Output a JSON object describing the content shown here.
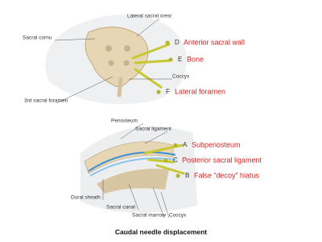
{
  "top_figure": {
    "anatomy_labels": [
      "Lateral sacral crest",
      "Sacral cornu",
      "Coccyx",
      "3rd sacral foramen"
    ],
    "needles": [
      {
        "letter": "D",
        "label": "Anterior sacral wall"
      },
      {
        "letter": "E",
        "label": "Bone"
      },
      {
        "letter": "F",
        "label": "Lateral foramen"
      }
    ]
  },
  "bottom_figure": {
    "anatomy_labels": [
      "Periosteum",
      "Sacral ligament",
      "Dural sheath",
      "Sacral canal",
      "Sacral marrow",
      "Coccyx"
    ],
    "needles": [
      {
        "letter": "A",
        "label": "Subperiosteum"
      },
      {
        "letter": "C",
        "label": "Posterior sacral ligament"
      },
      {
        "letter": "B",
        "label": "False “decoy” hiatus"
      }
    ]
  },
  "caption": "Caudal needle displacement"
}
